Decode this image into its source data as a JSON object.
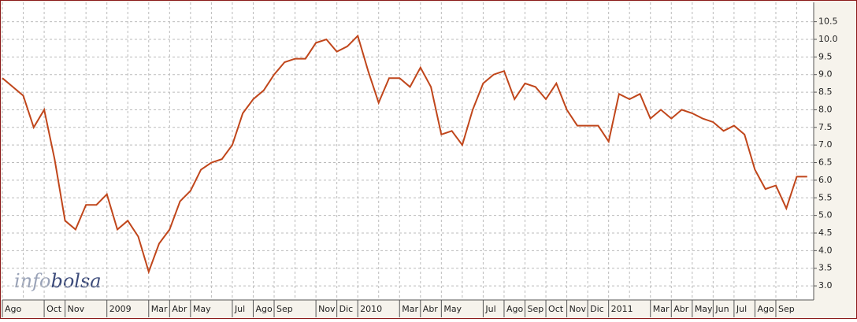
{
  "chart_data": {
    "type": "line",
    "color": "#c0461b",
    "grid": true,
    "watermark": [
      "info",
      "bolsa"
    ],
    "categories": [
      "Ago",
      null,
      null,
      null,
      "Oct",
      null,
      "Nov",
      null,
      null,
      null,
      "2009",
      null,
      null,
      null,
      "Mar",
      null,
      "Abr",
      null,
      "May",
      null,
      null,
      null,
      "Jul",
      null,
      "Ago",
      null,
      "Sep",
      null,
      null,
      null,
      "Nov",
      null,
      "Dic",
      null,
      "2010",
      null,
      null,
      null,
      "Mar",
      null,
      "Abr",
      null,
      "May",
      null,
      null,
      null,
      "Jul",
      null,
      "Ago",
      null,
      "Sep",
      null,
      "Oct",
      null,
      "Nov",
      null,
      "Dic",
      null,
      "2011",
      null,
      null,
      null,
      "Mar",
      null,
      "Abr",
      null,
      "May",
      null,
      "Jun",
      null,
      "Jul",
      null,
      "Ago",
      null,
      "Sep",
      null,
      null,
      null
    ],
    "values": [
      8.9,
      8.65,
      8.4,
      7.5,
      8.0,
      6.6,
      4.85,
      4.6,
      5.3,
      5.3,
      5.6,
      4.6,
      4.85,
      4.4,
      3.4,
      4.2,
      4.6,
      5.4,
      5.7,
      6.3,
      6.5,
      6.6,
      7.0,
      7.9,
      8.3,
      8.55,
      9.0,
      9.35,
      9.45,
      9.45,
      9.9,
      10.0,
      9.65,
      9.8,
      10.1,
      9.1,
      8.2,
      8.9,
      8.9,
      8.65,
      9.2,
      8.65,
      7.3,
      7.4,
      7.0,
      8.0,
      8.75,
      9.0,
      9.1,
      8.3,
      8.75,
      8.65,
      8.3,
      8.75,
      8.0,
      7.55,
      7.55,
      7.55,
      7.1,
      8.45,
      8.3,
      8.45,
      7.75,
      8.0,
      7.75,
      8.0,
      7.9,
      7.75,
      7.65,
      7.4,
      7.55,
      7.3,
      6.3,
      5.75,
      5.85,
      5.2,
      6.1,
      6.1
    ],
    "ylim": [
      2.6,
      11.05
    ],
    "yticks": [
      {
        "value": 3,
        "label": "3.0"
      },
      3.5,
      {
        "value": 4,
        "label": "4.0"
      },
      4.5,
      {
        "value": 5,
        "label": "5.0"
      },
      5.5,
      {
        "value": 6,
        "label": "6.0"
      },
      6.5,
      {
        "value": 7,
        "label": "7.0"
      },
      7.5,
      {
        "value": 8,
        "label": "8.0"
      },
      8.5,
      {
        "value": 9,
        "label": "9.0"
      },
      9.5,
      {
        "value": 10,
        "label": "10.0"
      },
      10.5
    ]
  }
}
